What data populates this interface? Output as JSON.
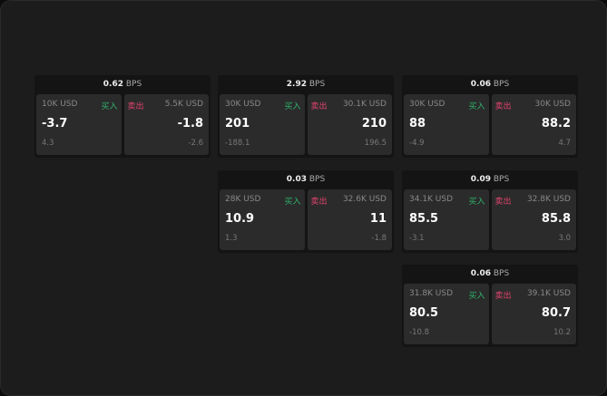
{
  "unit": "BPS",
  "buy_label": "买入",
  "sell_label": "卖出",
  "colors": {
    "buy": "#2fb36b",
    "sell": "#e2436f"
  },
  "cards": [
    {
      "spread": "0.62",
      "buy": {
        "amount": "10K USD",
        "price": "-3.7",
        "change": "4.3"
      },
      "sell": {
        "amount": "5.5K USD",
        "price": "-1.8",
        "change": "-2.6"
      }
    },
    {
      "spread": "2.92",
      "buy": {
        "amount": "30K USD",
        "price": "201",
        "change": "-188.1"
      },
      "sell": {
        "amount": "30.1K USD",
        "price": "210",
        "change": "196.5"
      }
    },
    {
      "spread": "0.06",
      "buy": {
        "amount": "30K USD",
        "price": "88",
        "change": "-4.9"
      },
      "sell": {
        "amount": "30K USD",
        "price": "88.2",
        "change": "4.7"
      }
    },
    {
      "spread": "0.03",
      "buy": {
        "amount": "28K USD",
        "price": "10.9",
        "change": "1.3"
      },
      "sell": {
        "amount": "32.6K USD",
        "price": "11",
        "change": "-1.8"
      }
    },
    {
      "spread": "0.09",
      "buy": {
        "amount": "34.1K USD",
        "price": "85.5",
        "change": "-3.1"
      },
      "sell": {
        "amount": "32.8K USD",
        "price": "85.8",
        "change": "3.0"
      }
    },
    {
      "spread": "0.06",
      "buy": {
        "amount": "31.8K USD",
        "price": "80.5",
        "change": "-10.8"
      },
      "sell": {
        "amount": "39.1K USD",
        "price": "80.7",
        "change": "10.2"
      }
    }
  ]
}
